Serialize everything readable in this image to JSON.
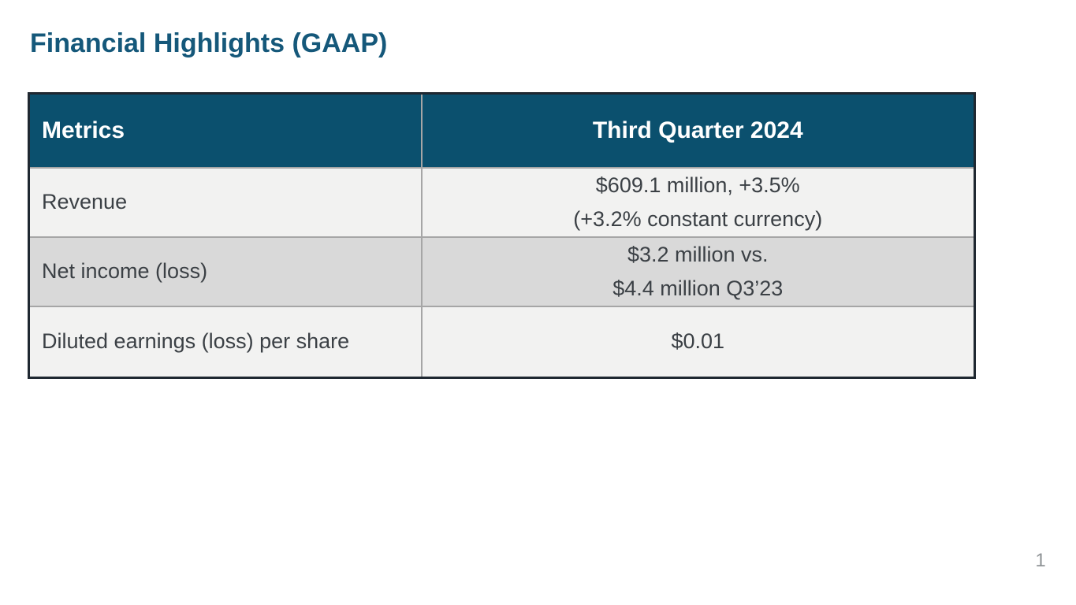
{
  "slide": {
    "title": "Financial Highlights (GAAP)",
    "page_number": "1"
  },
  "table": {
    "headers": [
      "Metrics",
      "Third Quarter 2024"
    ],
    "rows": [
      {
        "metric": "Revenue",
        "value_lines": [
          "$609.1 million, +3.5%",
          "(+3.2% constant currency)"
        ]
      },
      {
        "metric": "Net income (loss)",
        "value_lines": [
          "$3.2 million vs.",
          "$4.4 million Q3’23"
        ]
      },
      {
        "metric": "Diluted earnings (loss) per share",
        "value_lines": [
          "$0.01"
        ]
      }
    ]
  },
  "colors": {
    "title_text": "#15587A",
    "header_background": "#0B506E",
    "header_text": "#FFFFFF",
    "row_light_background": "#F2F2F1",
    "row_dark_background": "#D9D9D9",
    "body_text": "#3B4045",
    "outer_border": "#1F2831",
    "inner_border": "#A6A6A6",
    "page_number_text": "#8F9396"
  }
}
